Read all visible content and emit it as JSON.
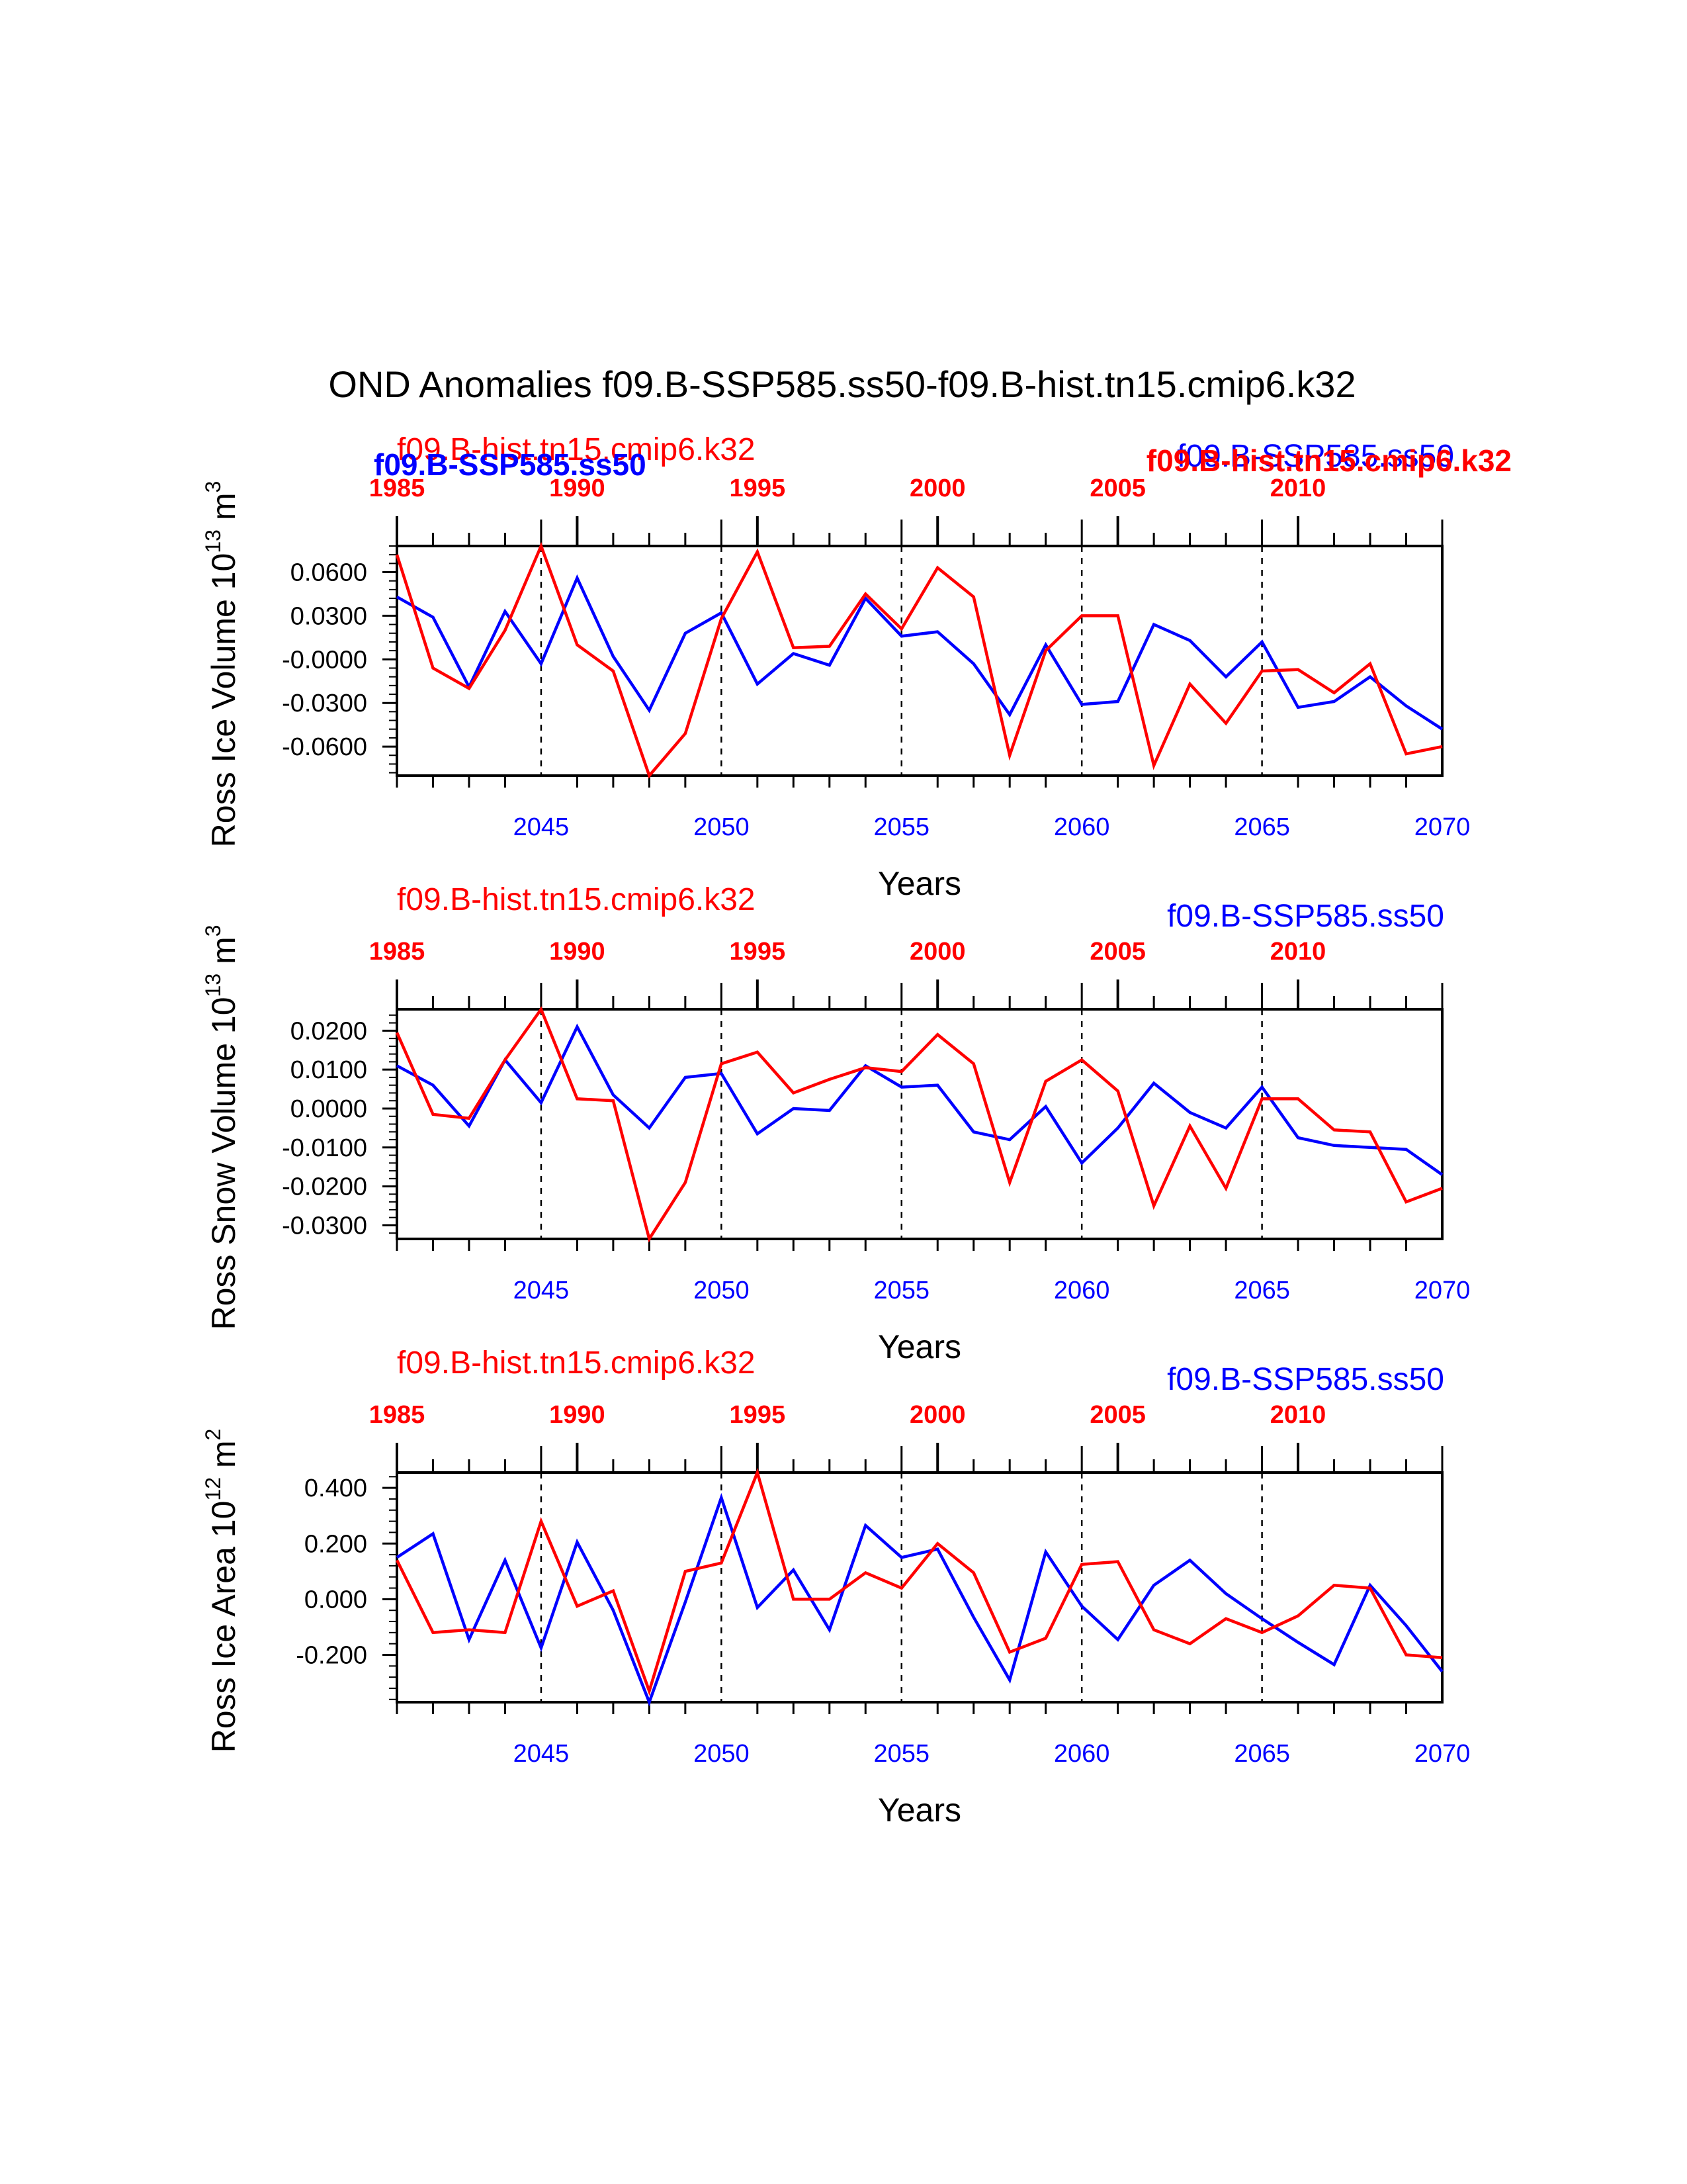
{
  "title": "OND Anomalies f09.B-SSP585.ss50-f09.B-hist.tn15.cmip6.k32",
  "colors": {
    "ssp585": "#0000ff",
    "hist": "#ff0000",
    "axis": "#000000"
  },
  "overlay_labels": {
    "hist_top": "f09.B-hist.tn15.cmip6.k32",
    "ssp_bold": "f09.B-SSP585.ss50",
    "ssp_top": "f09.B-SSP585.ss50",
    "hist_bold": "f09.B-hist.tn15.cmip6.k32"
  },
  "chart_data": [
    {
      "type": "line",
      "ylabel": "Ross Ice Volume 10",
      "ylabel_exp": "13",
      "ylabel_unit": " m",
      "ylabel_unit_exp": "3",
      "xlabel": "Years",
      "label_hist": "f09.B-hist.tn15.cmip6.k32",
      "label_ssp": "f09.B-SSP585.ss50",
      "xlim": [
        2041,
        2070
      ],
      "ylim": [
        -0.08,
        0.078
      ],
      "yticks": [
        0.06,
        0.03,
        0.0,
        -0.03,
        -0.06
      ],
      "ytick_labels": [
        "0.0600",
        "0.0300",
        "-0.0000",
        "-0.0300",
        "-0.0600"
      ],
      "xticks_bottom": [
        2045,
        2050,
        2055,
        2060,
        2065,
        2070
      ],
      "xticks_top": [
        1985,
        1990,
        1995,
        2000,
        2005,
        2010
      ],
      "x": [
        2041,
        2042,
        2043,
        2044,
        2045,
        2046,
        2047,
        2048,
        2049,
        2050,
        2051,
        2052,
        2053,
        2054,
        2055,
        2056,
        2057,
        2058,
        2059,
        2060,
        2061,
        2062,
        2063,
        2064,
        2065,
        2066,
        2067,
        2068,
        2069,
        2070
      ],
      "series": [
        {
          "name": "f09.B-SSP585.ss50",
          "color": "#0000ff",
          "values": [
            0.043,
            0.029,
            -0.019,
            0.033,
            -0.003,
            0.056,
            0.002,
            -0.035,
            0.018,
            0.032,
            -0.017,
            0.004,
            -0.004,
            0.042,
            0.016,
            0.019,
            -0.003,
            -0.038,
            0.01,
            -0.031,
            -0.029,
            0.024,
            0.013,
            -0.012,
            0.012,
            -0.033,
            -0.029,
            -0.012,
            -0.032,
            -0.048
          ]
        },
        {
          "name": "f09.B-hist.tn15.cmip6.k32",
          "color": "#ff0000",
          "values": [
            0.072,
            -0.006,
            -0.02,
            0.02,
            0.078,
            0.01,
            -0.008,
            -0.08,
            -0.051,
            0.028,
            0.074,
            0.008,
            0.009,
            0.045,
            0.021,
            0.063,
            0.043,
            -0.066,
            0.006,
            0.03,
            0.03,
            -0.073,
            -0.017,
            -0.044,
            -0.008,
            -0.007,
            -0.023,
            -0.003,
            -0.065,
            -0.06
          ]
        }
      ]
    },
    {
      "type": "line",
      "ylabel": "Ross Snow Volume 10",
      "ylabel_exp": "13",
      "ylabel_unit": " m",
      "ylabel_unit_exp": "3",
      "xlabel": "Years",
      "label_hist": "f09.B-hist.tn15.cmip6.k32",
      "label_ssp": "f09.B-SSP585.ss50",
      "xlim": [
        2041,
        2070
      ],
      "ylim": [
        -0.0335,
        0.0255
      ],
      "yticks": [
        0.02,
        0.01,
        0.0,
        -0.01,
        -0.02,
        -0.03
      ],
      "ytick_labels": [
        "0.0200",
        "0.0100",
        "0.0000",
        "-0.0100",
        "-0.0200",
        "-0.0300"
      ],
      "xticks_bottom": [
        2045,
        2050,
        2055,
        2060,
        2065,
        2070
      ],
      "xticks_top": [
        1985,
        1990,
        1995,
        2000,
        2005,
        2010
      ],
      "x": [
        2041,
        2042,
        2043,
        2044,
        2045,
        2046,
        2047,
        2048,
        2049,
        2050,
        2051,
        2052,
        2053,
        2054,
        2055,
        2056,
        2057,
        2058,
        2059,
        2060,
        2061,
        2062,
        2063,
        2064,
        2065,
        2066,
        2067,
        2068,
        2069,
        2070
      ],
      "series": [
        {
          "name": "f09.B-SSP585.ss50",
          "color": "#0000ff",
          "values": [
            0.011,
            0.006,
            -0.0045,
            0.0125,
            0.0015,
            0.021,
            0.0035,
            -0.005,
            0.008,
            0.009,
            -0.0065,
            0.0,
            -0.0005,
            0.011,
            0.0055,
            0.006,
            -0.006,
            -0.008,
            0.0005,
            -0.014,
            -0.005,
            0.0065,
            -0.001,
            -0.005,
            0.0055,
            -0.0075,
            -0.0095,
            -0.01,
            -0.0105,
            -0.017
          ]
        },
        {
          "name": "f09.B-hist.tn15.cmip6.k32",
          "color": "#ff0000",
          "values": [
            0.0195,
            -0.0015,
            -0.0025,
            0.0125,
            0.0255,
            0.0025,
            0.002,
            -0.0335,
            -0.019,
            0.0115,
            0.0145,
            0.004,
            0.0075,
            0.0105,
            0.0095,
            0.019,
            0.0115,
            -0.019,
            0.007,
            0.0125,
            0.0045,
            -0.025,
            -0.0045,
            -0.0205,
            0.0025,
            0.0025,
            -0.0055,
            -0.006,
            -0.024,
            -0.0205
          ]
        }
      ]
    },
    {
      "type": "line",
      "ylabel": "Ross Ice Area 10",
      "ylabel_exp": "12",
      "ylabel_unit": " m",
      "ylabel_unit_exp": "2",
      "xlabel": "Years",
      "label_hist": "f09.B-hist.tn15.cmip6.k32",
      "label_ssp": "f09.B-SSP585.ss50",
      "xlim": [
        2041,
        2070
      ],
      "ylim": [
        -0.37,
        0.455
      ],
      "yticks": [
        0.4,
        0.2,
        0.0,
        -0.2
      ],
      "ytick_labels": [
        "0.400",
        "0.200",
        "0.000",
        "-0.200"
      ],
      "xticks_bottom": [
        2045,
        2050,
        2055,
        2060,
        2065,
        2070
      ],
      "xticks_top": [
        1985,
        1990,
        1995,
        2000,
        2005,
        2010
      ],
      "x": [
        2041,
        2042,
        2043,
        2044,
        2045,
        2046,
        2047,
        2048,
        2049,
        2050,
        2051,
        2052,
        2053,
        2054,
        2055,
        2056,
        2057,
        2058,
        2059,
        2060,
        2061,
        2062,
        2063,
        2064,
        2065,
        2066,
        2067,
        2068,
        2069,
        2070
      ],
      "series": [
        {
          "name": "f09.B-SSP585.ss50",
          "color": "#0000ff",
          "values": [
            0.15,
            0.235,
            -0.145,
            0.14,
            -0.175,
            0.205,
            -0.04,
            -0.37,
            -0.01,
            0.365,
            -0.03,
            0.105,
            -0.11,
            0.265,
            0.15,
            0.18,
            -0.065,
            -0.29,
            0.17,
            -0.025,
            -0.145,
            0.05,
            0.14,
            0.02,
            -0.07,
            -0.155,
            -0.235,
            0.05,
            -0.095,
            -0.26
          ]
        },
        {
          "name": "f09.B-hist.tn15.cmip6.k32",
          "color": "#ff0000",
          "values": [
            0.14,
            -0.12,
            -0.11,
            -0.12,
            0.28,
            -0.025,
            0.03,
            -0.33,
            0.1,
            0.13,
            0.455,
            0.0,
            0.0,
            0.095,
            0.04,
            0.2,
            0.095,
            -0.19,
            -0.14,
            0.125,
            0.135,
            -0.11,
            -0.16,
            -0.07,
            -0.12,
            -0.06,
            0.05,
            0.04,
            -0.2,
            -0.21
          ]
        }
      ]
    }
  ]
}
